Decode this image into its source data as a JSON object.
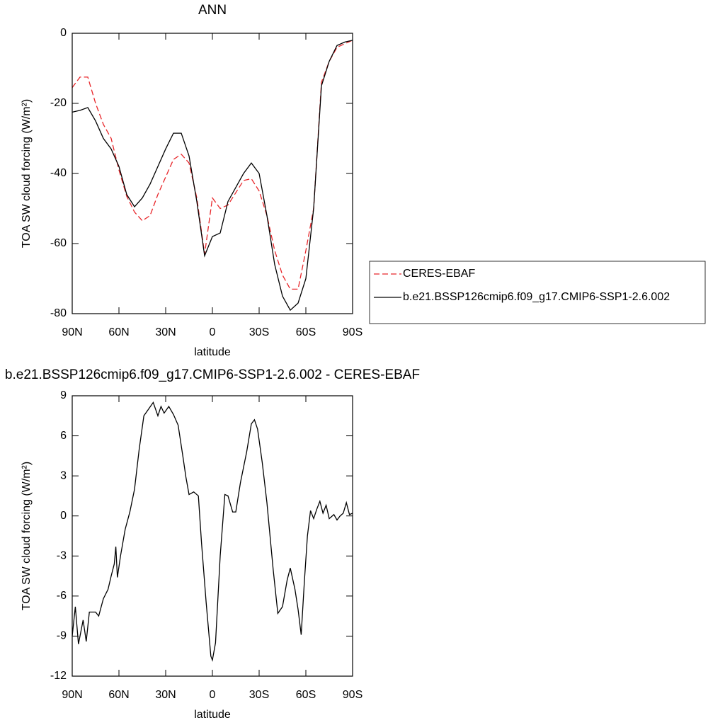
{
  "chart_data": [
    {
      "type": "line",
      "title": "ANN",
      "xlabel": "latitude",
      "ylabel": "TOA SW cloud forcing (W/m²)",
      "x": [
        90,
        85,
        80,
        75,
        70,
        65,
        60,
        55,
        50,
        45,
        40,
        35,
        30,
        25,
        20,
        15,
        10,
        5,
        0,
        -5,
        -10,
        -15,
        -20,
        -25,
        -30,
        -35,
        -40,
        -45,
        -50,
        -55,
        -60,
        -65,
        -70,
        -75,
        -80,
        -85,
        -90
      ],
      "series": [
        {
          "name": "CERES-EBAF",
          "color": "#e8262a",
          "line_style": "dashed",
          "values": [
            -15.5,
            -12.5,
            -12.5,
            -20,
            -26,
            -30,
            -39,
            -46.5,
            -51,
            -53.5,
            -52,
            -46,
            -41,
            -36,
            -34.5,
            -37,
            -47,
            -63,
            -47,
            -50,
            -49,
            -45.5,
            -42,
            -41.5,
            -45,
            -52,
            -62,
            -69,
            -73,
            -73,
            -62,
            -50,
            -14,
            -8,
            -4,
            -3,
            -2
          ]
        },
        {
          "name": "b.e21.BSSP126cmip6.f09_g17.CMIP6-SSP1-2.6.002",
          "color": "#000000",
          "line_style": "solid",
          "values": [
            -22.5,
            -22,
            -21.2,
            -25,
            -30,
            -33,
            -38,
            -46,
            -49.5,
            -47,
            -43,
            -38,
            -33,
            -28.5,
            -28.5,
            -35,
            -48,
            -63.5,
            -58,
            -57,
            -48,
            -44,
            -40,
            -37,
            -40,
            -52,
            -66,
            -75,
            -79,
            -77,
            -70,
            -50,
            -15,
            -8,
            -3.5,
            -2.5,
            -2
          ]
        }
      ],
      "xlim": [
        90,
        -90
      ],
      "ylim": [
        -80,
        0
      ],
      "xticks": [
        {
          "value": 90,
          "label": "90N"
        },
        {
          "value": 60,
          "label": "60N"
        },
        {
          "value": 30,
          "label": "30N"
        },
        0,
        {
          "value": -30,
          "label": "30S"
        },
        {
          "value": -60,
          "label": "60S"
        },
        {
          "value": -90,
          "label": "90S"
        }
      ],
      "yticks": [
        -80,
        -60,
        -40,
        -20,
        0
      ],
      "legend": "right"
    },
    {
      "type": "line",
      "title": "b.e21.BSSP126cmip6.f09_g17.CMIP6-SSP1-2.6.002 - CERES-EBAF",
      "xlabel": "latitude",
      "ylabel": "TOA SW cloud forcing (W/m²)",
      "x": [
        90,
        88,
        86,
        83,
        81,
        79,
        75,
        73,
        70,
        67,
        65,
        63,
        62,
        61,
        59,
        56,
        53,
        50,
        47,
        44,
        41,
        38,
        35,
        33,
        31,
        28,
        25,
        22,
        19,
        17,
        15,
        12,
        9,
        7,
        4,
        1,
        0,
        -2,
        -5,
        -8,
        -10,
        -13,
        -15,
        -18,
        -22,
        -25,
        -27,
        -29,
        -32,
        -35,
        -39,
        -42,
        -45,
        -48,
        -50,
        -53,
        -55,
        -57,
        -59,
        -61,
        -63,
        -65,
        -67,
        -69,
        -71,
        -73,
        -75,
        -78,
        -80,
        -82,
        -84,
        -86,
        -88,
        -90
      ],
      "values": [
        -9.0,
        -6.8,
        -9.6,
        -7.8,
        -9.4,
        -7.2,
        -7.2,
        -7.5,
        -6.2,
        -5.5,
        -4.5,
        -3.6,
        -2.3,
        -4.6,
        -3.0,
        -1.0,
        0.3,
        2.0,
        5.0,
        7.5,
        8.0,
        8.5,
        7.5,
        8.2,
        7.7,
        8.2,
        7.6,
        6.8,
        4.5,
        2.9,
        1.6,
        1.8,
        1.5,
        -2.0,
        -6.5,
        -10.5,
        -10.8,
        -9.5,
        -3.0,
        1.6,
        1.5,
        0.3,
        0.3,
        2.5,
        4.8,
        6.9,
        7.2,
        6.5,
        4.0,
        1.0,
        -4.0,
        -7.3,
        -6.8,
        -4.8,
        -3.9,
        -5.5,
        -7.0,
        -8.9,
        -5.0,
        -1.5,
        0.4,
        -0.2,
        0.5,
        1.1,
        0.2,
        0.8,
        -0.2,
        0.1,
        -0.3,
        0.0,
        0.2,
        1.0,
        0.1,
        0.2
      ],
      "color": "#000000",
      "xlim": [
        90,
        -90
      ],
      "ylim": [
        -12,
        9
      ],
      "xticks": [
        {
          "value": 90,
          "label": "90N"
        },
        {
          "value": 60,
          "label": "60N"
        },
        {
          "value": 30,
          "label": "30N"
        },
        0,
        {
          "value": -30,
          "label": "30S"
        },
        {
          "value": -60,
          "label": "60S"
        },
        {
          "value": -90,
          "label": "90S"
        }
      ],
      "yticks": [
        -12,
        -9,
        -6,
        -3,
        0,
        3,
        6,
        9
      ]
    }
  ]
}
